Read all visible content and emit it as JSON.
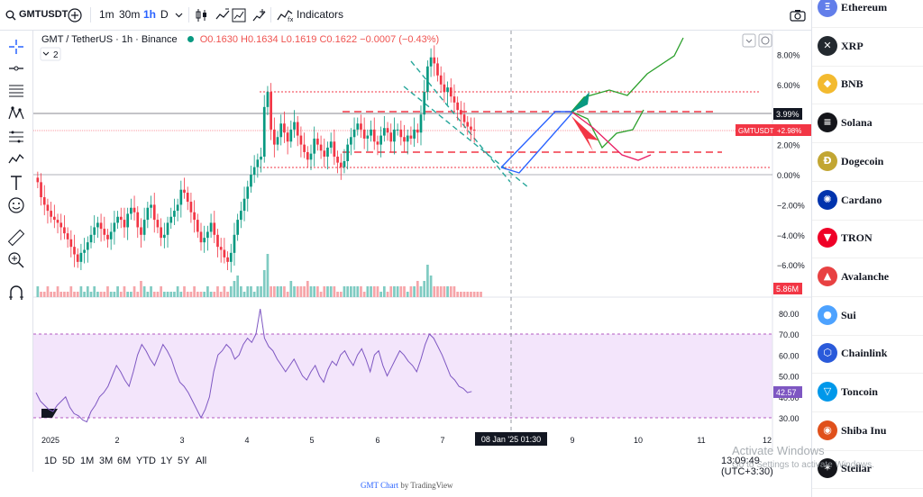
{
  "toolbar": {
    "symbol": "GMTUSDT",
    "intervals": [
      "1m",
      "30m",
      "1h",
      "D"
    ],
    "active_interval": "1h",
    "indicators_label": "Indicators"
  },
  "legend": {
    "title": "GMT / TetherUS · 1h · Binance",
    "o": "O0.1630",
    "h": "H0.1634",
    "l": "L0.1619",
    "c": "C0.1622",
    "chg": "−0.0007 (−0.43%)",
    "collapse_count": "2"
  },
  "chart_data": {
    "type": "candlestick",
    "title": "GMT / TetherUS · 1h · Binance",
    "price_axis_percent": [
      "8.00%",
      "6.00%",
      "4.00%",
      "2.00%",
      "0.00%",
      "−2.00%",
      "−4.00%",
      "−6.00%"
    ],
    "rsi_axis": [
      "80.00",
      "70.00",
      "60.00",
      "50.00",
      "40.00",
      "30.00"
    ],
    "time_axis": [
      "2025",
      "2",
      "3",
      "4",
      "5",
      "6",
      "7",
      "9",
      "10",
      "11",
      "12"
    ],
    "crosshair_time": "08 Jan '25  01:30",
    "labels": {
      "pct_box": "3.99%",
      "symbol_tag": "GMTUSDT",
      "symbol_pct": "+2.98%",
      "volume": "5.86M",
      "rsi": "42.57"
    },
    "close_pct_series": [
      -0.5,
      -1.5,
      -2.0,
      -2.4,
      -2.8,
      -3.0,
      -3.2,
      -3.5,
      -3.9,
      -4.3,
      -4.8,
      -5.3,
      -5.8,
      -5.2,
      -5.0,
      -4.5,
      -4.0,
      -3.5,
      -3.2,
      -3.6,
      -4.0,
      -4.3,
      -3.8,
      -3.2,
      -2.8,
      -3.0,
      -3.5,
      -2.6,
      -2.2,
      -2.5,
      -3.5,
      -4.0,
      -3.0,
      -2.2,
      -2.0,
      -3.0,
      -3.5,
      -4.2,
      -4.0,
      -3.2,
      -2.8,
      -2.4,
      -2.0,
      -1.0,
      -1.2,
      -1.8,
      -2.5,
      -3.0,
      -3.8,
      -4.5,
      -4.2,
      -3.8,
      -3.2,
      -4.0,
      -4.8,
      -5.0,
      -5.5,
      -5.8,
      -5.2,
      -4.0,
      -3.0,
      -2.4,
      -1.6,
      -0.8,
      0.0,
      0.5,
      1.0,
      1.2,
      4.5,
      5.5,
      3.0,
      2.0,
      2.5,
      3.4,
      2.8,
      2.2,
      3.0,
      3.5,
      2.6,
      2.0,
      1.5,
      1.0,
      1.4,
      2.4,
      2.0,
      1.6,
      1.2,
      1.8,
      2.2,
      1.2,
      0.8,
      0.5,
      0.9,
      2.0,
      2.5,
      3.0,
      3.4,
      3.0,
      2.4,
      2.6,
      3.0,
      2.2,
      2.0,
      2.6,
      3.1,
      2.8,
      2.2,
      3.0,
      3.0,
      2.5,
      2.2,
      2.6,
      2.4,
      3.0,
      2.8,
      4.0,
      5.5,
      7.2,
      7.8,
      7.4,
      6.6,
      6.0,
      5.5,
      5.8,
      5.2,
      4.8,
      4.3,
      4.0,
      3.5,
      3.2,
      3.0,
      2.98
    ],
    "volume_series": [
      2,
      1,
      1,
      2,
      1,
      1,
      2,
      1,
      1,
      1,
      2,
      1,
      1,
      2,
      1,
      2,
      1,
      2,
      1,
      1,
      1,
      2,
      1,
      1,
      2,
      1,
      2,
      1,
      1,
      2,
      1,
      3,
      2,
      1,
      2,
      1,
      1,
      2,
      1,
      1,
      1,
      1,
      2,
      1,
      2,
      1,
      1,
      2,
      1,
      1,
      1,
      2,
      1,
      1,
      2,
      1,
      2,
      1,
      2,
      3,
      4,
      2,
      1,
      2,
      2,
      1,
      2,
      2,
      5,
      8,
      2,
      2,
      2,
      2,
      2,
      1,
      3,
      2,
      2,
      2,
      2,
      3,
      2,
      2,
      2,
      1,
      2,
      2,
      2,
      2,
      1,
      1,
      2,
      2,
      2,
      2,
      2,
      2,
      1,
      2,
      2,
      2,
      2,
      1,
      2,
      1,
      2,
      2,
      2,
      2,
      2,
      1,
      2,
      2,
      3,
      2,
      3,
      6,
      4,
      2,
      2,
      2,
      2,
      2,
      2,
      2,
      1,
      1,
      1,
      1,
      1,
      1,
      1,
      1
    ],
    "rsi_series": [
      42,
      38,
      36,
      34,
      33,
      36,
      38,
      40,
      35,
      32,
      31,
      29,
      28,
      33,
      36,
      40,
      42,
      45,
      50,
      55,
      52,
      48,
      45,
      52,
      60,
      65,
      62,
      58,
      55,
      60,
      65,
      62,
      58,
      52,
      47,
      45,
      42,
      38,
      34,
      30,
      34,
      40,
      52,
      60,
      62,
      65,
      63,
      58,
      60,
      65,
      68,
      66,
      70,
      82,
      68,
      64,
      62,
      58,
      55,
      52,
      55,
      58,
      54,
      50,
      48,
      52,
      55,
      50,
      47,
      53,
      57,
      55,
      60,
      62,
      58,
      55,
      60,
      63,
      58,
      52,
      60,
      62,
      55,
      50,
      54,
      58,
      62,
      60,
      57,
      55,
      52,
      58,
      65,
      70,
      68,
      64,
      60,
      55,
      50,
      48,
      45,
      44,
      42,
      42.57
    ],
    "bands": {
      "rsi_upper": 70,
      "rsi_lower": 30
    }
  },
  "bottom_bar": {
    "ranges": [
      "1D",
      "5D",
      "1M",
      "3M",
      "6M",
      "YTD",
      "1Y",
      "5Y",
      "All"
    ],
    "clock": "13:09:49 (UTC+3:30)"
  },
  "credit": {
    "link": "GMT Chart",
    "by": "by TradingView"
  },
  "watermark": {
    "line1": "Activate Windows",
    "line2": "Go to Settings to activate Windows."
  },
  "coins": [
    {
      "name": "Ethereum",
      "glyph": "Ξ",
      "color": "#627eea"
    },
    {
      "name": "XRP",
      "glyph": "✕",
      "color": "#23292f"
    },
    {
      "name": "BNB",
      "glyph": "◆",
      "color": "#f3ba2f"
    },
    {
      "name": "Solana",
      "glyph": "≡",
      "color": "#14151a"
    },
    {
      "name": "Dogecoin",
      "glyph": "Ð",
      "color": "#c2a633"
    },
    {
      "name": "Cardano",
      "glyph": "✺",
      "color": "#0033ad"
    },
    {
      "name": "TRON",
      "glyph": "▼",
      "color": "#ef0027"
    },
    {
      "name": "Avalanche",
      "glyph": "▲",
      "color": "#e84142"
    },
    {
      "name": "Sui",
      "glyph": "●",
      "color": "#4da2ff"
    },
    {
      "name": "Chainlink",
      "glyph": "⬡",
      "color": "#2a5ada"
    },
    {
      "name": "Toncoin",
      "glyph": "▽",
      "color": "#0098ea"
    },
    {
      "name": "Shiba Inu",
      "glyph": "◉",
      "color": "#e0501b"
    },
    {
      "name": "Stellar",
      "glyph": "✶",
      "color": "#14151a"
    }
  ]
}
